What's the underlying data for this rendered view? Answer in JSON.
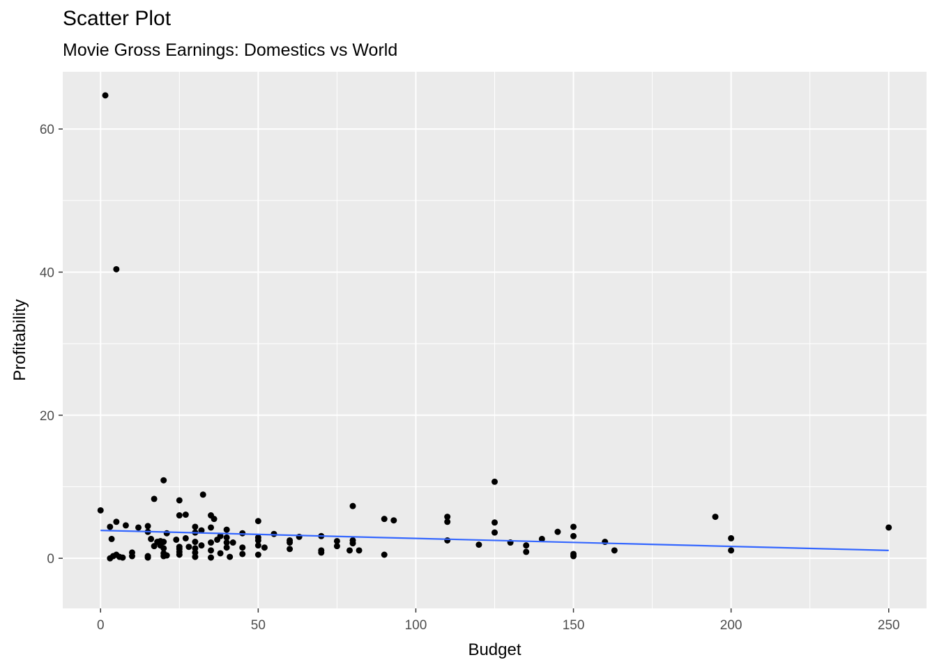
{
  "chart_data": {
    "type": "scatter",
    "title": "Scatter Plot",
    "subtitle": "Movie Gross Earnings: Domestics vs World",
    "xlabel": "Budget",
    "ylabel": "Profitability",
    "xlim": [
      -12,
      262
    ],
    "ylim": [
      -7,
      68
    ],
    "x_ticks": [
      0,
      50,
      100,
      150,
      200,
      250
    ],
    "y_ticks": [
      0,
      20,
      40,
      60
    ],
    "grid": true,
    "colors": {
      "panel": "#ebebeb",
      "grid": "#ffffff",
      "points": "#000000",
      "trend": "#3366ff"
    },
    "trend_line": {
      "x": [
        0,
        250
      ],
      "y": [
        3.9,
        1.1
      ]
    },
    "points": [
      [
        0,
        6.7
      ],
      [
        1.5,
        64.7
      ],
      [
        3,
        4.4
      ],
      [
        3,
        0
      ],
      [
        3.5,
        2.7
      ],
      [
        4,
        0.3
      ],
      [
        5,
        40.4
      ],
      [
        5,
        5.1
      ],
      [
        5,
        0.5
      ],
      [
        6,
        0.2
      ],
      [
        7,
        0.1
      ],
      [
        8,
        4.6
      ],
      [
        10,
        0.3
      ],
      [
        10,
        0.8
      ],
      [
        12,
        4.3
      ],
      [
        15,
        4.5
      ],
      [
        15,
        3.7
      ],
      [
        15,
        0.3
      ],
      [
        15,
        0.1
      ],
      [
        16,
        2.7
      ],
      [
        17,
        8.3
      ],
      [
        17,
        1.7
      ],
      [
        18,
        2.3
      ],
      [
        19,
        1.8
      ],
      [
        19,
        2.4
      ],
      [
        20,
        10.9
      ],
      [
        20,
        2.3
      ],
      [
        20,
        1.4
      ],
      [
        20,
        0.3
      ],
      [
        20,
        0.7
      ],
      [
        21,
        3.5
      ],
      [
        21,
        0.4
      ],
      [
        24,
        2.6
      ],
      [
        25,
        8.1
      ],
      [
        25,
        6
      ],
      [
        25,
        1.3
      ],
      [
        25,
        0.5
      ],
      [
        25,
        0.9
      ],
      [
        25,
        1.6
      ],
      [
        27,
        6.1
      ],
      [
        27,
        2.8
      ],
      [
        28,
        1.6
      ],
      [
        30,
        4.4
      ],
      [
        30,
        3.6
      ],
      [
        30,
        2.3
      ],
      [
        30,
        1.4
      ],
      [
        30,
        0.2
      ],
      [
        30,
        0.8
      ],
      [
        32,
        3.9
      ],
      [
        32,
        1.8
      ],
      [
        32.5,
        8.9
      ],
      [
        35,
        6
      ],
      [
        35,
        4.3
      ],
      [
        35,
        2.2
      ],
      [
        35,
        1.1
      ],
      [
        35,
        0.1
      ],
      [
        36,
        5.5
      ],
      [
        37,
        2.6
      ],
      [
        38,
        3.1
      ],
      [
        38,
        0.7
      ],
      [
        40,
        4
      ],
      [
        40,
        2.9
      ],
      [
        40,
        2.2
      ],
      [
        40,
        1.5
      ],
      [
        41,
        0.2
      ],
      [
        42,
        2.2
      ],
      [
        45,
        3.5
      ],
      [
        45,
        1.5
      ],
      [
        45,
        0.6
      ],
      [
        50,
        5.2
      ],
      [
        50,
        2.9
      ],
      [
        50,
        2.5
      ],
      [
        50,
        1.8
      ],
      [
        50,
        0.5
      ],
      [
        52,
        1.5
      ],
      [
        55,
        3.4
      ],
      [
        60,
        2.5
      ],
      [
        60,
        2.2
      ],
      [
        60,
        1.3
      ],
      [
        63,
        3
      ],
      [
        70,
        3.1
      ],
      [
        70,
        1.1
      ],
      [
        70,
        0.8
      ],
      [
        75,
        2.4
      ],
      [
        75,
        1.7
      ],
      [
        79,
        1.1
      ],
      [
        80,
        7.3
      ],
      [
        80,
        2.5
      ],
      [
        80,
        2.1
      ],
      [
        82,
        1.1
      ],
      [
        90,
        5.5
      ],
      [
        90,
        0.5
      ],
      [
        93,
        5.3
      ],
      [
        110,
        5.8
      ],
      [
        110,
        5.1
      ],
      [
        110,
        2.5
      ],
      [
        120,
        1.9
      ],
      [
        125,
        10.7
      ],
      [
        125,
        5
      ],
      [
        125,
        3.6
      ],
      [
        130,
        2.2
      ],
      [
        135,
        1.8
      ],
      [
        135,
        0.9
      ],
      [
        140,
        2.7
      ],
      [
        145,
        3.7
      ],
      [
        150,
        4.4
      ],
      [
        150,
        3.1
      ],
      [
        150,
        0.6
      ],
      [
        150,
        0.3
      ],
      [
        160,
        2.3
      ],
      [
        163,
        1.1
      ],
      [
        195,
        5.8
      ],
      [
        200,
        2.8
      ],
      [
        200,
        1.1
      ],
      [
        250,
        4.3
      ]
    ]
  }
}
